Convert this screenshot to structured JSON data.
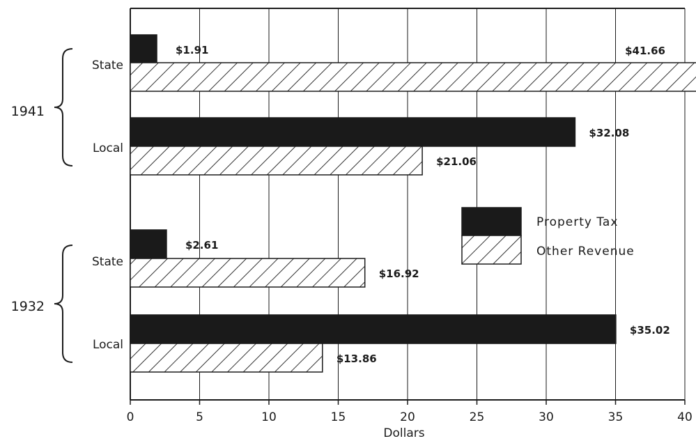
{
  "chart_data": {
    "type": "bar",
    "orientation": "horizontal",
    "xlabel": "Dollars",
    "xlim": [
      0,
      40
    ],
    "xticks": [
      0,
      5,
      10,
      15,
      20,
      25,
      30,
      35,
      40
    ],
    "grid": "vertical",
    "legend_position": "center-right",
    "legend": [
      {
        "name": "Property Tax",
        "pattern": "solid",
        "color": "#1a1a1a"
      },
      {
        "name": "Other Revenue",
        "pattern": "hatched",
        "color": "#1a1a1a"
      }
    ],
    "groups": [
      {
        "label": "1941",
        "categories": [
          {
            "label": "State",
            "bars": [
              {
                "series": "Property Tax",
                "value": 1.91,
                "label": "$1.91"
              },
              {
                "series": "Other Revenue",
                "value": 41.66,
                "label": "$41.66"
              }
            ]
          },
          {
            "label": "Local",
            "bars": [
              {
                "series": "Property Tax",
                "value": 32.08,
                "label": "$32.08"
              },
              {
                "series": "Other Revenue",
                "value": 21.06,
                "label": "$21.06"
              }
            ]
          }
        ]
      },
      {
        "label": "1932",
        "categories": [
          {
            "label": "State",
            "bars": [
              {
                "series": "Property Tax",
                "value": 2.61,
                "label": "$2.61"
              },
              {
                "series": "Other Revenue",
                "value": 16.92,
                "label": "$16.92"
              }
            ]
          },
          {
            "label": "Local",
            "bars": [
              {
                "series": "Property Tax",
                "value": 35.02,
                "label": "$35.02"
              },
              {
                "series": "Other Revenue",
                "value": 13.86,
                "label": "$13.86"
              }
            ]
          }
        ]
      }
    ]
  }
}
